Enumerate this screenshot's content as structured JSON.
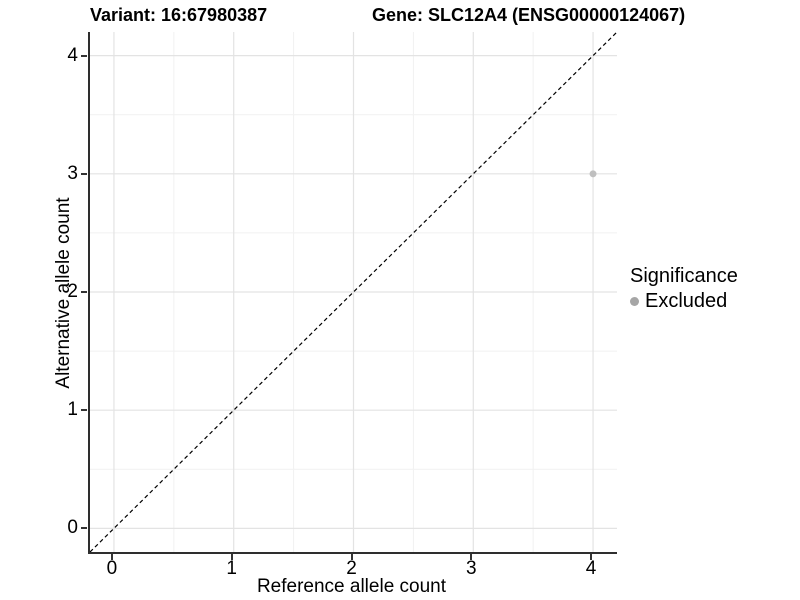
{
  "page": {
    "background": "#ffffff"
  },
  "header": {
    "title_left": "Variant: 16:67980387",
    "title_right": "Gene: SLC12A4 (ENSG00000124067)"
  },
  "chart_data": {
    "type": "scatter",
    "title_left": "Variant: 16:67980387",
    "title_right": "Gene: SLC12A4 (ENSG00000124067)",
    "xlabel": "Reference allele count",
    "ylabel": "Alternative allele count",
    "xlim": [
      -0.2,
      4.2
    ],
    "ylim": [
      -0.2,
      4.2
    ],
    "xticks": [
      0,
      1,
      2,
      3,
      4
    ],
    "yticks": [
      0,
      1,
      2,
      3,
      4
    ],
    "xticks_minor": [
      0.5,
      1.5,
      2.5,
      3.5
    ],
    "yticks_minor": [
      0.5,
      1.5,
      2.5,
      3.5
    ],
    "grid": true,
    "grid_major_color": "#e3e3e3",
    "grid_minor_color": "#f1f1f1",
    "axis_line_color": "#2e2e2e",
    "points": [
      {
        "x": 4,
        "y": 3,
        "series": "Excluded"
      }
    ],
    "point_color": "#bfbfbf",
    "point_radius_px": 3.5,
    "reference_line": {
      "type": "identity",
      "style": "dashed",
      "color": "#000000"
    },
    "legend": {
      "title": "Significance",
      "position": "right",
      "items": [
        {
          "label": "Excluded",
          "color": "#a6a6a6"
        }
      ]
    }
  }
}
